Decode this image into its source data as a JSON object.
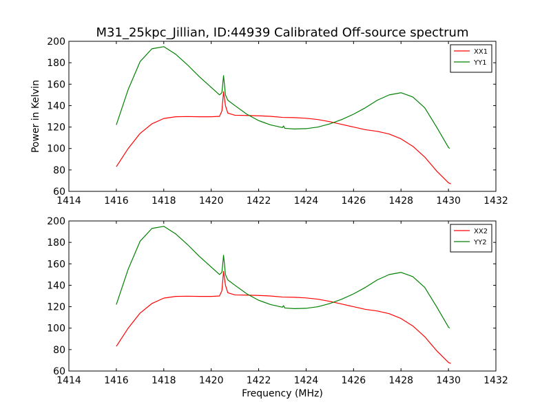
{
  "title": "M31_25kpc_Jillian, ID:44939 Calibrated Off-source spectrum",
  "chart_data": [
    {
      "type": "line",
      "xlabel": "",
      "ylabel": "Power in Kelvin",
      "xlim": [
        1414,
        1432
      ],
      "ylim": [
        60,
        200
      ],
      "xticks": [
        "1414",
        "1416",
        "1418",
        "1420",
        "1422",
        "1424",
        "1426",
        "1428",
        "1430",
        "1432"
      ],
      "yticks": [
        "60",
        "80",
        "100",
        "120",
        "140",
        "160",
        "180",
        "200"
      ],
      "legend_position": "top-right",
      "series": [
        {
          "name": "XX1",
          "color": "#ff0000",
          "points": [
            [
              1416.0,
              83
            ],
            [
              1416.5,
              100
            ],
            [
              1417.0,
              114
            ],
            [
              1417.5,
              123
            ],
            [
              1418.0,
              128
            ],
            [
              1418.5,
              129.6
            ],
            [
              1419.0,
              129.8
            ],
            [
              1419.5,
              129.6
            ],
            [
              1420.0,
              129.6
            ],
            [
              1420.35,
              130
            ],
            [
              1420.45,
              135
            ],
            [
              1420.52,
              153
            ],
            [
              1420.6,
              140
            ],
            [
              1420.7,
              133
            ],
            [
              1421.0,
              131
            ],
            [
              1421.5,
              130.8
            ],
            [
              1422.0,
              130.5
            ],
            [
              1422.5,
              130
            ],
            [
              1423.0,
              129
            ],
            [
              1423.5,
              128.8
            ],
            [
              1424.0,
              128.2
            ],
            [
              1424.5,
              127
            ],
            [
              1425.0,
              125
            ],
            [
              1425.5,
              122.5
            ],
            [
              1426.0,
              120
            ],
            [
              1426.5,
              117.5
            ],
            [
              1427.0,
              116
            ],
            [
              1427.5,
              113.5
            ],
            [
              1428.0,
              109
            ],
            [
              1428.5,
              102
            ],
            [
              1429.0,
              92
            ],
            [
              1429.5,
              79
            ],
            [
              1430.0,
              68
            ],
            [
              1430.1,
              67
            ]
          ]
        },
        {
          "name": "YY1",
          "color": "#008000",
          "points": [
            [
              1416.0,
              122
            ],
            [
              1416.5,
              155
            ],
            [
              1417.0,
              181
            ],
            [
              1417.5,
              193
            ],
            [
              1418.0,
              195
            ],
            [
              1418.5,
              188
            ],
            [
              1419.0,
              178
            ],
            [
              1419.5,
              167
            ],
            [
              1420.0,
              157
            ],
            [
              1420.35,
              150
            ],
            [
              1420.45,
              152
            ],
            [
              1420.52,
              168
            ],
            [
              1420.6,
              150
            ],
            [
              1420.7,
              145
            ],
            [
              1421.0,
              140
            ],
            [
              1421.5,
              132
            ],
            [
              1422.0,
              126
            ],
            [
              1422.5,
              122
            ],
            [
              1423.0,
              119.5
            ],
            [
              1423.05,
              121
            ],
            [
              1423.1,
              118.8
            ],
            [
              1423.5,
              118.2
            ],
            [
              1424.0,
              118.5
            ],
            [
              1424.5,
              120
            ],
            [
              1425.0,
              123
            ],
            [
              1425.5,
              127
            ],
            [
              1426.0,
              132
            ],
            [
              1426.5,
              138
            ],
            [
              1427.0,
              145
            ],
            [
              1427.5,
              150
            ],
            [
              1428.0,
              152
            ],
            [
              1428.5,
              148
            ],
            [
              1429.0,
              138
            ],
            [
              1429.5,
              120
            ],
            [
              1430.0,
              101
            ],
            [
              1430.05,
              100
            ]
          ]
        }
      ]
    },
    {
      "type": "line",
      "xlabel": "Frequency (MHz)",
      "ylabel": "",
      "xlim": [
        1414,
        1432
      ],
      "ylim": [
        60,
        200
      ],
      "xticks": [
        "1414",
        "1416",
        "1418",
        "1420",
        "1422",
        "1424",
        "1426",
        "1428",
        "1430",
        "1432"
      ],
      "yticks": [
        "60",
        "80",
        "100",
        "120",
        "140",
        "160",
        "180",
        "200"
      ],
      "legend_position": "top-right",
      "series": [
        {
          "name": "XX2",
          "color": "#ff0000",
          "points": [
            [
              1416.0,
              83
            ],
            [
              1416.5,
              100
            ],
            [
              1417.0,
              114
            ],
            [
              1417.5,
              123
            ],
            [
              1418.0,
              128
            ],
            [
              1418.5,
              129.6
            ],
            [
              1419.0,
              129.8
            ],
            [
              1419.5,
              129.6
            ],
            [
              1420.0,
              129.6
            ],
            [
              1420.35,
              130
            ],
            [
              1420.45,
              135
            ],
            [
              1420.52,
              153
            ],
            [
              1420.6,
              140
            ],
            [
              1420.7,
              133
            ],
            [
              1421.0,
              131
            ],
            [
              1421.5,
              130.8
            ],
            [
              1422.0,
              130.5
            ],
            [
              1422.5,
              130
            ],
            [
              1423.0,
              129
            ],
            [
              1423.5,
              128.8
            ],
            [
              1424.0,
              128.2
            ],
            [
              1424.5,
              127
            ],
            [
              1425.0,
              125
            ],
            [
              1425.5,
              122.5
            ],
            [
              1426.0,
              120
            ],
            [
              1426.5,
              117.5
            ],
            [
              1427.0,
              116
            ],
            [
              1427.5,
              113.5
            ],
            [
              1428.0,
              109
            ],
            [
              1428.5,
              102
            ],
            [
              1429.0,
              92
            ],
            [
              1429.5,
              79
            ],
            [
              1430.0,
              68
            ],
            [
              1430.1,
              67
            ]
          ]
        },
        {
          "name": "YY2",
          "color": "#008000",
          "points": [
            [
              1416.0,
              122
            ],
            [
              1416.5,
              155
            ],
            [
              1417.0,
              181
            ],
            [
              1417.5,
              193
            ],
            [
              1418.0,
              195
            ],
            [
              1418.5,
              188
            ],
            [
              1419.0,
              178
            ],
            [
              1419.5,
              167
            ],
            [
              1420.0,
              157
            ],
            [
              1420.35,
              150
            ],
            [
              1420.45,
              152
            ],
            [
              1420.52,
              168
            ],
            [
              1420.6,
              150
            ],
            [
              1420.7,
              145
            ],
            [
              1421.0,
              140
            ],
            [
              1421.5,
              132
            ],
            [
              1422.0,
              126
            ],
            [
              1422.5,
              122
            ],
            [
              1423.0,
              119.5
            ],
            [
              1423.05,
              121
            ],
            [
              1423.1,
              118.8
            ],
            [
              1423.5,
              118.2
            ],
            [
              1424.0,
              118.5
            ],
            [
              1424.5,
              120
            ],
            [
              1425.0,
              123
            ],
            [
              1425.5,
              127
            ],
            [
              1426.0,
              132
            ],
            [
              1426.5,
              138
            ],
            [
              1427.0,
              145
            ],
            [
              1427.5,
              150
            ],
            [
              1428.0,
              152
            ],
            [
              1428.5,
              148
            ],
            [
              1429.0,
              138
            ],
            [
              1429.5,
              120
            ],
            [
              1430.0,
              101
            ],
            [
              1430.05,
              100
            ]
          ]
        }
      ]
    }
  ]
}
